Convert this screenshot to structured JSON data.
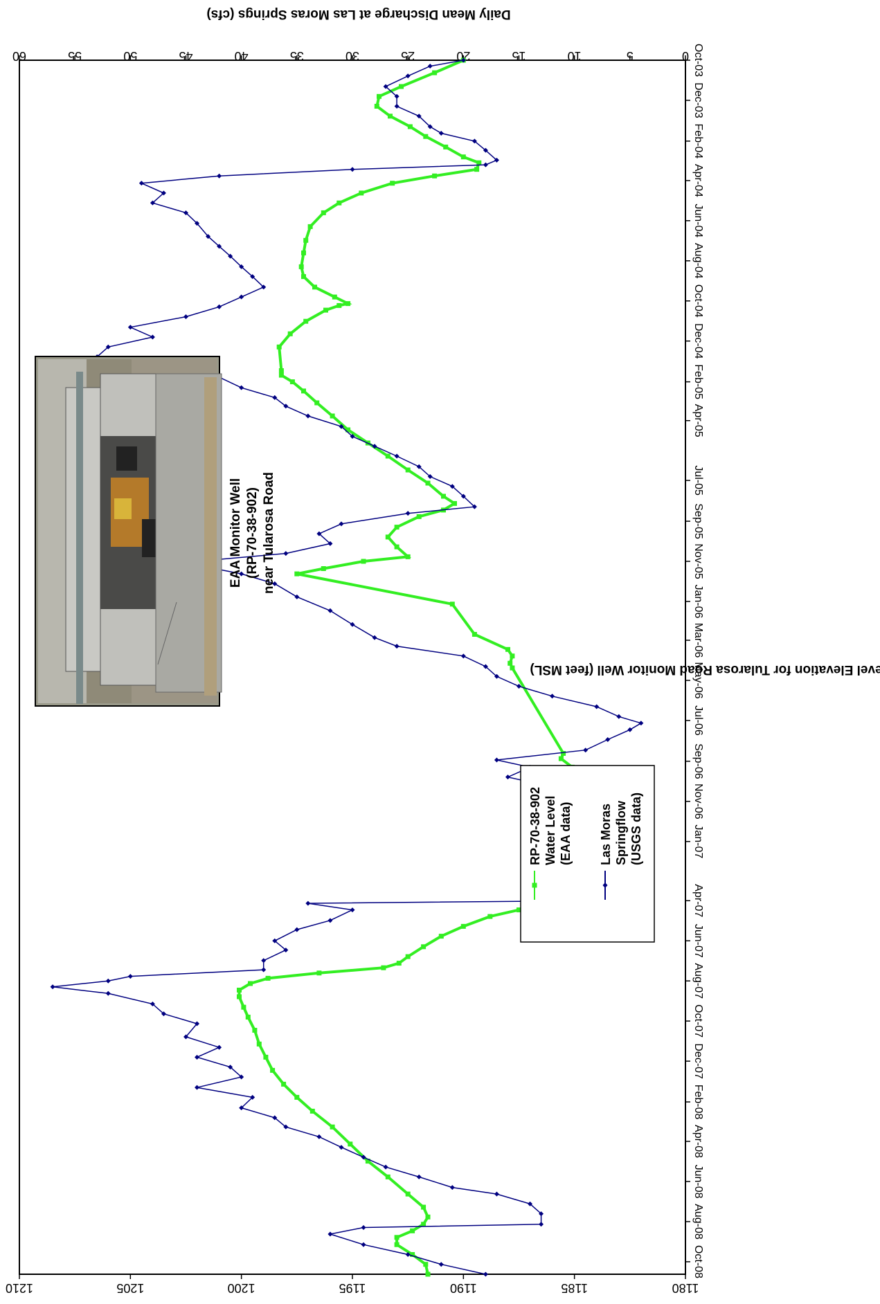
{
  "chart_data": {
    "type": "line",
    "rotated": "chart rotated 90 degrees clockwise; time axis runs top-to-bottom",
    "title": "",
    "x_axis": {
      "ticks": [
        "Oct-03",
        "Dec-03",
        "Feb-04",
        "Apr-04",
        "Jun-04",
        "Aug-04",
        "Oct-04",
        "Dec-04",
        "Feb-05",
        "Apr-05",
        "Jul-05",
        "Sep-05",
        "Nov-05",
        "Jan-06",
        "Mar-06",
        "May-06",
        "Jul-06",
        "Sep-06",
        "Nov-06",
        "Jan-07",
        "Apr-07",
        "Jun-07",
        "Aug-07",
        "Oct-07",
        "Dec-07",
        "Feb-08",
        "Apr-08",
        "Jun-08",
        "Aug-08",
        "Oct-08"
      ],
      "range": [
        "2003-10-01",
        "2008-10-20"
      ]
    },
    "y_left": {
      "label": "Water-Level Elevation for Tularosa Road Monitor Well (feet MSL)",
      "ticks": [
        "1180",
        "1185",
        "1190",
        "1195",
        "1200",
        "1205",
        "1210"
      ],
      "range": [
        1180,
        1210
      ]
    },
    "y_right": {
      "label": "Daily Mean Discharge at Las Moras Springs (cfs)",
      "ticks": [
        "0",
        "5",
        "10",
        "15",
        "20",
        "25",
        "30",
        "35",
        "40",
        "45",
        "50",
        "55",
        "60"
      ],
      "range": [
        0,
        60
      ]
    },
    "legend_position": "lower-left",
    "series": [
      {
        "name": "RP-70-38-902 Water Level (EAA data)",
        "axis": "left",
        "color": "#33ee22",
        "marker": "square",
        "points": [
          [
            "2003-10-01",
            1190.0
          ],
          [
            "2003-10-20",
            1191.3
          ],
          [
            "2003-11-10",
            1192.8
          ],
          [
            "2003-11-25",
            1193.8
          ],
          [
            "2003-12-10",
            1193.9
          ],
          [
            "2003-12-25",
            1193.3
          ],
          [
            "2004-01-10",
            1192.4
          ],
          [
            "2004-01-25",
            1191.7
          ],
          [
            "2004-02-10",
            1190.8
          ],
          [
            "2004-02-25",
            1190.0
          ],
          [
            "2004-03-05",
            1189.3
          ],
          [
            "2004-03-15",
            1189.4
          ],
          [
            "2004-03-25",
            1191.3
          ],
          [
            "2004-04-05",
            1193.2
          ],
          [
            "2004-04-20",
            1194.6
          ],
          [
            "2004-05-05",
            1195.6
          ],
          [
            "2004-05-20",
            1196.3
          ],
          [
            "2004-06-10",
            1196.9
          ],
          [
            "2004-07-01",
            1197.1
          ],
          [
            "2004-07-20",
            1197.2
          ],
          [
            "2004-08-10",
            1197.3
          ],
          [
            "2004-08-25",
            1197.2
          ],
          [
            "2004-09-10",
            1196.7
          ],
          [
            "2004-09-25",
            1195.8
          ],
          [
            "2004-10-05",
            1195.2
          ],
          [
            "2004-10-08",
            1195.6
          ],
          [
            "2004-10-15",
            1196.2
          ],
          [
            "2004-11-01",
            1197.1
          ],
          [
            "2004-11-20",
            1197.8
          ],
          [
            "2004-12-10",
            1198.3
          ],
          [
            "2005-01-15",
            1198.2
          ],
          [
            "2005-01-22",
            1198.2
          ],
          [
            "2005-02-01",
            1197.7
          ],
          [
            "2005-02-15",
            1197.2
          ],
          [
            "2005-03-05",
            1196.6
          ],
          [
            "2005-03-25",
            1195.9
          ],
          [
            "2005-04-15",
            1195.2
          ],
          [
            "2005-05-05",
            1194.3
          ],
          [
            "2005-05-25",
            1193.4
          ],
          [
            "2005-06-15",
            1192.5
          ],
          [
            "2005-07-05",
            1191.6
          ],
          [
            "2005-07-25",
            1190.9
          ],
          [
            "2005-08-05",
            1190.4
          ],
          [
            "2005-08-15",
            1190.9
          ],
          [
            "2005-08-25",
            1192.0
          ],
          [
            "2005-09-10",
            1193.0
          ],
          [
            "2005-09-25",
            1193.4
          ],
          [
            "2005-10-10",
            1193.0
          ],
          [
            "2005-10-25",
            1192.5
          ],
          [
            "2005-11-01",
            1194.5
          ],
          [
            "2005-11-12",
            1196.3
          ],
          [
            "2005-11-20",
            1197.5
          ],
          [
            "2006-01-05",
            1190.5
          ],
          [
            "2006-02-20",
            1189.5
          ],
          [
            "2006-03-15",
            1188.0
          ],
          [
            "2006-03-25",
            1187.8
          ],
          [
            "2006-04-05",
            1187.9
          ],
          [
            "2006-04-12",
            1187.8
          ],
          [
            "2006-08-20",
            1185.5
          ],
          [
            "2006-08-28",
            1185.6
          ],
          [
            "2006-09-10",
            1185.1
          ],
          [
            "2006-10-25",
            1186.0
          ],
          [
            "2006-12-10",
            1185.3
          ],
          [
            "2007-01-10",
            1185.3
          ],
          [
            "2007-02-10",
            1185.4
          ],
          [
            "2007-03-05",
            1185.0
          ],
          [
            "2007-03-25",
            1184.9
          ],
          [
            "2007-04-02",
            1185.1
          ],
          [
            "2007-04-08",
            1186.0
          ],
          [
            "2007-04-15",
            1187.5
          ],
          [
            "2007-04-25",
            1188.8
          ],
          [
            "2007-05-10",
            1190.0
          ],
          [
            "2007-05-25",
            1191.0
          ],
          [
            "2007-06-10",
            1191.8
          ],
          [
            "2007-06-25",
            1192.5
          ],
          [
            "2007-07-05",
            1192.9
          ],
          [
            "2007-07-12",
            1193.6
          ],
          [
            "2007-07-20",
            1196.5
          ],
          [
            "2007-07-28",
            1198.8
          ],
          [
            "2007-08-05",
            1199.6
          ],
          [
            "2007-08-15",
            1200.1
          ],
          [
            "2007-08-25",
            1200.1
          ],
          [
            "2007-09-10",
            1199.9
          ],
          [
            "2007-09-25",
            1199.7
          ],
          [
            "2007-10-15",
            1199.4
          ],
          [
            "2007-11-05",
            1199.2
          ],
          [
            "2007-11-25",
            1198.9
          ],
          [
            "2007-12-15",
            1198.6
          ],
          [
            "2008-01-05",
            1198.1
          ],
          [
            "2008-01-25",
            1197.5
          ],
          [
            "2008-02-15",
            1196.8
          ],
          [
            "2008-03-10",
            1195.9
          ],
          [
            "2008-04-05",
            1195.1
          ],
          [
            "2008-05-01",
            1194.3
          ],
          [
            "2008-05-25",
            1193.4
          ],
          [
            "2008-06-20",
            1192.5
          ],
          [
            "2008-07-10",
            1191.8
          ],
          [
            "2008-07-25",
            1191.6
          ],
          [
            "2008-08-05",
            1191.8
          ],
          [
            "2008-08-15",
            1192.3
          ],
          [
            "2008-08-25",
            1193.0
          ],
          [
            "2008-09-05",
            1193.0
          ],
          [
            "2008-09-20",
            1192.3
          ],
          [
            "2008-10-05",
            1191.7
          ],
          [
            "2008-10-20",
            1191.6
          ]
        ]
      },
      {
        "name": "Las Moras Springflow (USGS data)",
        "axis": "right",
        "color": "#000080",
        "marker": "diamond",
        "points": [
          [
            "2003-10-01",
            20.0
          ],
          [
            "2003-10-10",
            23.0
          ],
          [
            "2003-10-25",
            25.0
          ],
          [
            "2003-11-10",
            27.0
          ],
          [
            "2003-11-25",
            26.0
          ],
          [
            "2003-12-10",
            26.0
          ],
          [
            "2003-12-25",
            24.0
          ],
          [
            "2004-01-10",
            23.0
          ],
          [
            "2004-01-20",
            22.0
          ],
          [
            "2004-02-01",
            19.0
          ],
          [
            "2004-02-15",
            18.0
          ],
          [
            "2004-03-01",
            17.0
          ],
          [
            "2004-03-08",
            18.0
          ],
          [
            "2004-03-15",
            30.0
          ],
          [
            "2004-03-25",
            42.0
          ],
          [
            "2004-04-05",
            49.0
          ],
          [
            "2004-04-20",
            47.0
          ],
          [
            "2004-05-05",
            48.0
          ],
          [
            "2004-05-20",
            45.0
          ],
          [
            "2004-06-05",
            44.0
          ],
          [
            "2004-06-25",
            43.0
          ],
          [
            "2004-07-10",
            42.0
          ],
          [
            "2004-07-25",
            41.0
          ],
          [
            "2004-08-10",
            40.0
          ],
          [
            "2004-08-25",
            39.0
          ],
          [
            "2004-09-10",
            38.0
          ],
          [
            "2004-09-25",
            40.0
          ],
          [
            "2004-10-10",
            42.0
          ],
          [
            "2004-10-25",
            45.0
          ],
          [
            "2004-11-10",
            50.0
          ],
          [
            "2004-11-25",
            48.0
          ],
          [
            "2004-12-10",
            52.0
          ],
          [
            "2004-12-25",
            53.0
          ],
          [
            "2005-01-10",
            46.0
          ],
          [
            "2005-01-25",
            42.0
          ],
          [
            "2005-02-10",
            40.0
          ],
          [
            "2005-02-25",
            37.0
          ],
          [
            "2005-03-10",
            36.0
          ],
          [
            "2005-03-25",
            34.0
          ],
          [
            "2005-04-10",
            31.0
          ],
          [
            "2005-04-25",
            30.0
          ],
          [
            "2005-05-10",
            28.0
          ],
          [
            "2005-05-25",
            26.0
          ],
          [
            "2005-06-10",
            24.0
          ],
          [
            "2005-06-25",
            23.0
          ],
          [
            "2005-07-10",
            21.0
          ],
          [
            "2005-07-25",
            20.0
          ],
          [
            "2005-08-10",
            19.0
          ],
          [
            "2005-08-20",
            25.0
          ],
          [
            "2005-09-05",
            31.0
          ],
          [
            "2005-09-20",
            33.0
          ],
          [
            "2005-10-05",
            32.0
          ],
          [
            "2005-10-20",
            36.0
          ],
          [
            "2005-11-01",
            44.0
          ],
          [
            "2005-11-10",
            43.0
          ],
          [
            "2005-11-20",
            40.0
          ],
          [
            "2005-12-05",
            37.0
          ],
          [
            "2005-12-25",
            35.0
          ],
          [
            "2006-01-15",
            32.0
          ],
          [
            "2006-02-05",
            30.0
          ],
          [
            "2006-02-25",
            28.0
          ],
          [
            "2006-03-10",
            26.0
          ],
          [
            "2006-03-25",
            20.0
          ],
          [
            "2006-04-10",
            18.0
          ],
          [
            "2006-04-25",
            17.0
          ],
          [
            "2006-05-10",
            15.0
          ],
          [
            "2006-05-25",
            12.0
          ],
          [
            "2006-06-10",
            8.0
          ],
          [
            "2006-06-25",
            6.0
          ],
          [
            "2006-07-05",
            4.0
          ],
          [
            "2006-07-15",
            5.0
          ],
          [
            "2006-07-30",
            7.0
          ],
          [
            "2006-08-15",
            9.0
          ],
          [
            "2006-08-30",
            17.0
          ],
          [
            "2006-09-10",
            14.0
          ],
          [
            "2006-09-25",
            16.0
          ],
          [
            "2006-10-10",
            12.0
          ],
          [
            "2006-10-25",
            12.0
          ],
          [
            "2006-11-10",
            10.0
          ],
          [
            "2006-11-25",
            11.0
          ],
          [
            "2006-12-10",
            13.0
          ],
          [
            "2006-12-25",
            12.0
          ],
          [
            "2007-01-10",
            14.0
          ],
          [
            "2007-01-25",
            11.0
          ],
          [
            "2007-02-10",
            13.0
          ],
          [
            "2007-02-25",
            11.0
          ],
          [
            "2007-03-10",
            10.0
          ],
          [
            "2007-03-25",
            9.0
          ],
          [
            "2007-04-01",
            9.0
          ],
          [
            "2007-04-05",
            34.0
          ],
          [
            "2007-04-15",
            30.0
          ],
          [
            "2007-05-01",
            32.0
          ],
          [
            "2007-05-15",
            35.0
          ],
          [
            "2007-06-01",
            37.0
          ],
          [
            "2007-06-15",
            36.0
          ],
          [
            "2007-07-01",
            38.0
          ],
          [
            "2007-07-15",
            38.0
          ],
          [
            "2007-07-25",
            50.0
          ],
          [
            "2007-08-01",
            52.0
          ],
          [
            "2007-08-10",
            57.0
          ],
          [
            "2007-08-20",
            52.0
          ],
          [
            "2007-09-05",
            48.0
          ],
          [
            "2007-09-20",
            47.0
          ],
          [
            "2007-10-05",
            44.0
          ],
          [
            "2007-10-25",
            45.0
          ],
          [
            "2007-11-10",
            42.0
          ],
          [
            "2007-11-25",
            44.0
          ],
          [
            "2007-12-10",
            41.0
          ],
          [
            "2007-12-25",
            40.0
          ],
          [
            "2008-01-10",
            44.0
          ],
          [
            "2008-01-25",
            39.0
          ],
          [
            "2008-02-10",
            40.0
          ],
          [
            "2008-02-25",
            37.0
          ],
          [
            "2008-03-10",
            36.0
          ],
          [
            "2008-03-25",
            33.0
          ],
          [
            "2008-04-10",
            31.0
          ],
          [
            "2008-04-25",
            29.0
          ],
          [
            "2008-05-10",
            27.0
          ],
          [
            "2008-05-25",
            24.0
          ],
          [
            "2008-06-10",
            21.0
          ],
          [
            "2008-06-20",
            17.0
          ],
          [
            "2008-07-05",
            14.0
          ],
          [
            "2008-07-20",
            13.0
          ],
          [
            "2008-08-05",
            13.0
          ],
          [
            "2008-08-10",
            29.0
          ],
          [
            "2008-08-20",
            32.0
          ],
          [
            "2008-09-05",
            29.0
          ],
          [
            "2008-09-20",
            25.0
          ],
          [
            "2008-10-05",
            22.0
          ],
          [
            "2008-10-20",
            18.0
          ]
        ]
      }
    ]
  },
  "annotation": {
    "line1": "EAA Monitor Well",
    "line2": "(RP-70-38-902)",
    "line3": "near Tularosa Road"
  },
  "legend": {
    "s1_line1": "RP-70-38-902",
    "s1_line2": "Water Level",
    "s1_line3": "(EAA data)",
    "s2_line1": "Las Moras",
    "s2_line2": "Springflow",
    "s2_line3": "(USGS data)"
  }
}
